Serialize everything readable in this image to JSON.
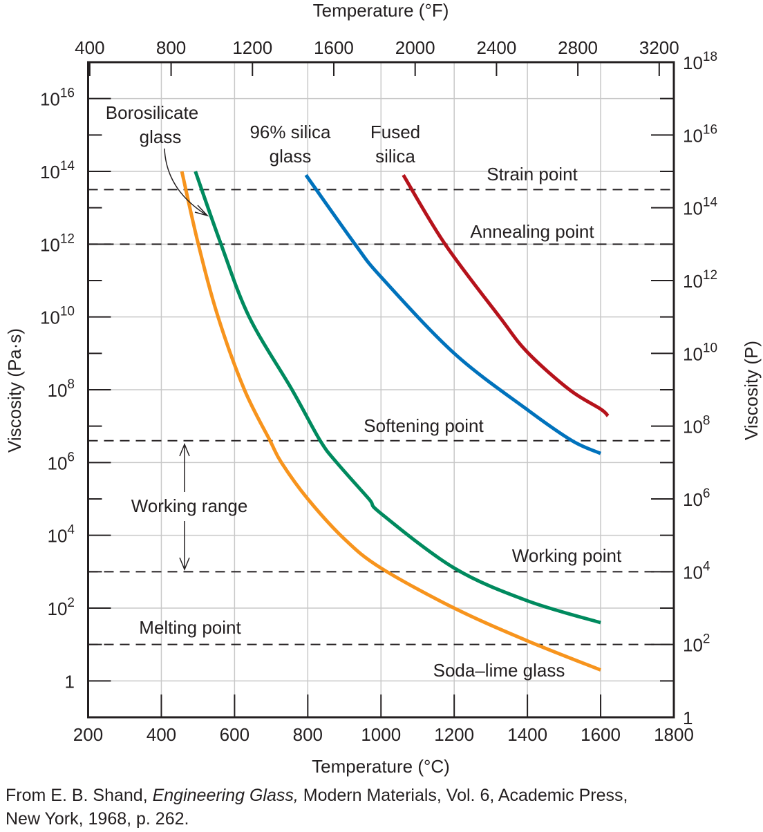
{
  "chart_data": {
    "type": "line",
    "xlabel": "Temperature (°C)",
    "x2label": "Temperature (°F)",
    "ylabel": "Viscosity (Pa·s)",
    "y2label": "Viscosity (P)",
    "xlim": [
      200,
      1800
    ],
    "xticks": [
      200,
      400,
      600,
      800,
      1000,
      1200,
      1400,
      1600,
      1800
    ],
    "x2ticks_F": [
      400,
      800,
      1200,
      1600,
      2000,
      2400,
      2800,
      3200
    ],
    "yscale": "log",
    "ylim_log10": [
      -1,
      17
    ],
    "yticks_log10": [
      0,
      2,
      4,
      6,
      8,
      10,
      12,
      14,
      16
    ],
    "y2ticks_log10_P": [
      0,
      2,
      4,
      6,
      8,
      10,
      12,
      14,
      16,
      18
    ],
    "grid": true,
    "series": [
      {
        "name": "Soda–lime glass",
        "color": "#f7941d",
        "x": [
          456,
          501,
          555,
          627,
          697,
          728,
          800,
          900,
          1000,
          1200,
          1400,
          1600
        ],
        "log10_viscosity": [
          14.0,
          12.0,
          10.0,
          8.0,
          6.6,
          6.0,
          5.0,
          3.9,
          3.1,
          2.0,
          1.1,
          0.3
        ]
      },
      {
        "name": "Borosilicate glass",
        "color": "#008a5e",
        "x": [
          493,
          563,
          640,
          757,
          834,
          879,
          967,
          1000,
          1200,
          1400,
          1600
        ],
        "log10_viscosity": [
          14.0,
          12.0,
          10.0,
          8.0,
          6.6,
          6.0,
          5.0,
          4.6,
          3.1,
          2.2,
          1.6
        ]
      },
      {
        "name": "96% silica glass",
        "color": "#0072bc",
        "x": [
          795,
          929,
          1000,
          1200,
          1400,
          1522,
          1600
        ],
        "log10_viscosity": [
          13.9,
          12.0,
          11.1,
          9.0,
          7.45,
          6.6,
          6.25
        ]
      },
      {
        "name": "Fused silica",
        "color": "#b5121b",
        "x": [
          1061,
          1175,
          1324,
          1400,
          1515,
          1600,
          1620
        ],
        "log10_viscosity": [
          13.9,
          12.0,
          10.0,
          9.03,
          8.0,
          7.47,
          7.28
        ]
      }
    ],
    "reference_lines": [
      {
        "label": "Strain point",
        "log10_viscosity": 13.5
      },
      {
        "label": "Annealing point",
        "log10_viscosity": 12.0
      },
      {
        "label": "Softening point",
        "log10_viscosity": 6.6
      },
      {
        "label": "Working point",
        "log10_viscosity": 3.0
      },
      {
        "label": "Melting point",
        "log10_viscosity": 1.0
      }
    ],
    "annotations": {
      "borosilicate": [
        "Borosilicate",
        "glass"
      ],
      "silica96": [
        "96% silica",
        "glass"
      ],
      "fused": [
        "Fused",
        "silica"
      ],
      "soda": "Soda–lime glass",
      "working_range": "Working range"
    }
  },
  "footer": {
    "prefix": "From E. B. Shand, ",
    "title": "Engineering Glass,",
    "suffix": " Modern Materials, Vol. 6, Academic Press,",
    "line2": "New York, 1968, p. 262."
  }
}
